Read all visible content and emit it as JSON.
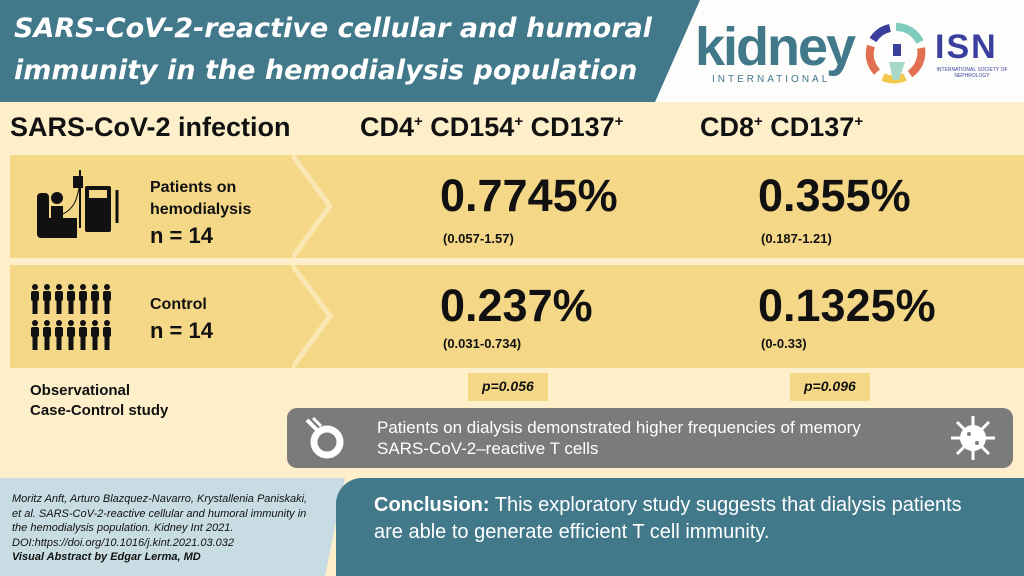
{
  "header": {
    "title_line1": "SARS-CoV-2-reactive cellular and humoral",
    "title_line2": "immunity in the hemodialysis population"
  },
  "logos": {
    "kidney": "kidney",
    "kidney_sub": "INTERNATIONAL",
    "isn": "ISN",
    "isn_sub": "INTERNATIONAL SOCIETY OF NEPHROLOGY"
  },
  "columns": {
    "c1": "SARS-CoV-2 infection",
    "c2": {
      "a": "CD4",
      "b": " CD154",
      "c": " CD137",
      "sup": "+"
    },
    "c3": {
      "a": "CD8",
      "b": " CD137",
      "sup": "+"
    }
  },
  "rows": [
    {
      "label1": "Patients on",
      "label2": "hemodialysis",
      "n": "n = 14",
      "cd4": "0.7745%",
      "cd4_range": "(0.057-1.57)",
      "cd8": "0.355%",
      "cd8_range": "(0.187-1.21)"
    },
    {
      "label1": "Control",
      "n": "n = 14",
      "cd4": "0.237%",
      "cd4_range": "(0.031-0.734)",
      "cd8": "0.1325%",
      "cd8_range": "(0-0.33)"
    }
  ],
  "study": {
    "line1": "Observational",
    "line2": "Case-Control study"
  },
  "p_values": {
    "cd4": "p=0.056",
    "cd8": "p=0.096"
  },
  "finding": {
    "line1": "Patients on dialysis demonstrated higher frequencies of memory",
    "line2": "SARS-CoV-2–reactive T cells"
  },
  "citation": {
    "l1": "Moritz Anft, Arturo Blazquez-Navarro, Krystallenia Paniskaki,",
    "l2": "et al. SARS-CoV-2-reactive cellular and humoral immunity in",
    "l3": "the hemodialysis population. Kidney Int 2021.",
    "l4": "DOI:https://doi.org/10.1016/j.kint.2021.03.032",
    "l5": "Visual Abstract by Edgar Lerma, MD"
  },
  "conclusion": {
    "label": "Conclusion:",
    "text1": " This exploratory study suggests that dialysis patients",
    "text2": "are able to generate efficient T cell immunity."
  }
}
